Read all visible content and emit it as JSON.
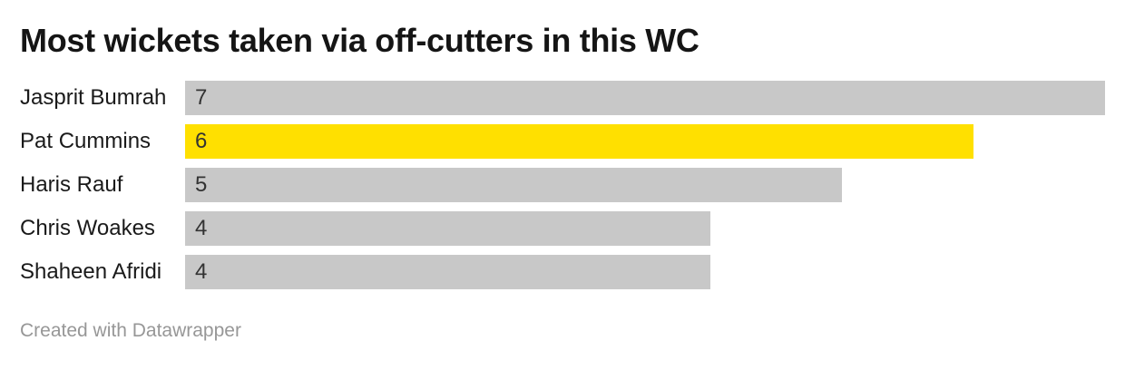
{
  "header": {
    "title": "Most wickets taken via off-cutters in this WC"
  },
  "footer": {
    "attribution": "Created with Datawrapper"
  },
  "colors": {
    "background": "#ffffff",
    "bar_default": "#c8c8c8",
    "bar_highlight": "#ffe000",
    "title_text": "#151515",
    "label_text": "#1a1a1a",
    "value_text": "#333333",
    "footer_text": "#979797"
  },
  "chart_data": {
    "type": "bar",
    "orientation": "horizontal",
    "title": "Most wickets taken via off-cutters in this WC",
    "categories": [
      "Jasprit Bumrah",
      "Pat Cummins",
      "Haris Rauf",
      "Chris Woakes",
      "Shaheen Afridi"
    ],
    "values": [
      7,
      6,
      5,
      4,
      4
    ],
    "highlighted_index": 1,
    "highlighted_category": "Pat Cummins",
    "xlim": [
      0,
      7
    ],
    "value_labels": "inside-start",
    "grid": false,
    "legend": false,
    "axis_ticks": false
  }
}
